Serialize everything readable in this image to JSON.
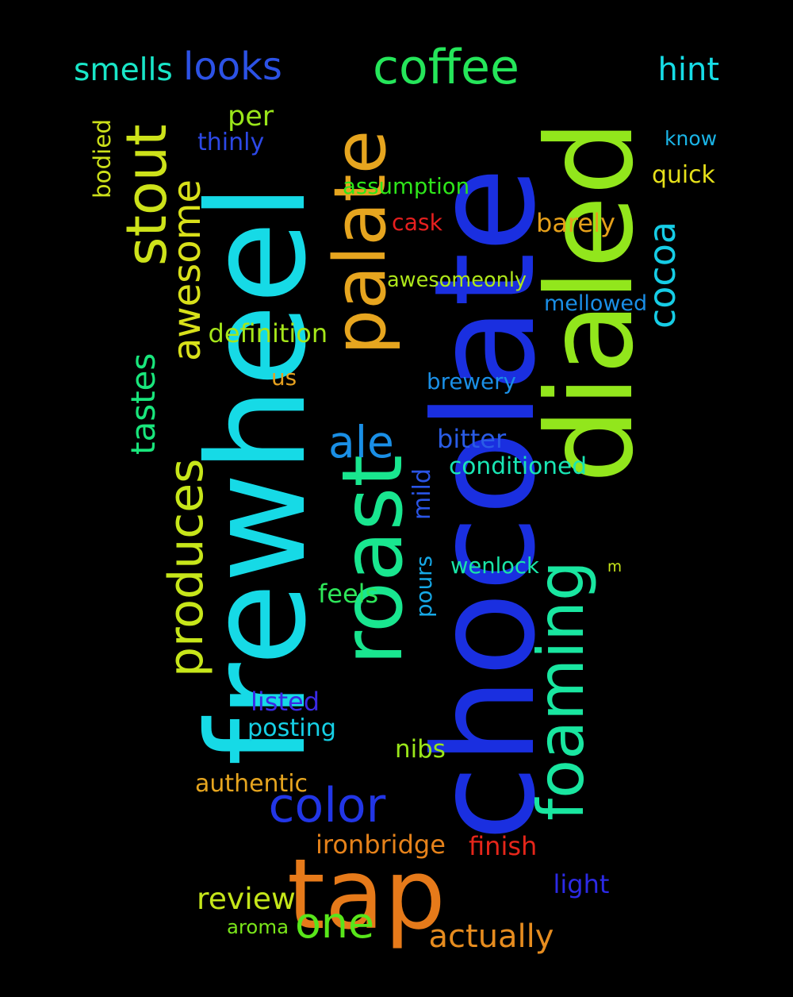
{
  "words": [
    {
      "text": "chocolate",
      "color": "#1a2fe0"
    },
    {
      "text": "frewheel",
      "color": "#16dae6"
    },
    {
      "text": "roast",
      "color": "#19e68f"
    },
    {
      "text": "dialed",
      "color": "#92e61c"
    },
    {
      "text": "palate",
      "color": "#e6a51f"
    },
    {
      "text": "stout",
      "color": "#cde21a"
    },
    {
      "text": "foaming",
      "color": "#19e6a0"
    },
    {
      "text": "tap",
      "color": "#e67a1a"
    },
    {
      "text": "produces",
      "color": "#c7e61a"
    },
    {
      "text": "coffee",
      "color": "#25e65a"
    },
    {
      "text": "awesome",
      "color": "#d8e01a"
    },
    {
      "text": "color",
      "color": "#2236e6"
    },
    {
      "text": "ale",
      "color": "#1a8fe6"
    },
    {
      "text": "looks",
      "color": "#2c52e6"
    },
    {
      "text": "one",
      "color": "#58e61a"
    },
    {
      "text": "tastes",
      "color": "#19e67c"
    },
    {
      "text": "cocoa",
      "color": "#16cde6"
    },
    {
      "text": "smells",
      "color": "#19e6c8"
    },
    {
      "text": "hint",
      "color": "#16dde6"
    },
    {
      "text": "review",
      "color": "#c5e61a"
    },
    {
      "text": "actually",
      "color": "#e68c1f"
    },
    {
      "text": "per",
      "color": "#9ae61a"
    },
    {
      "text": "thinly",
      "color": "#2c48e6"
    },
    {
      "text": "know",
      "color": "#1ab4e6"
    },
    {
      "text": "quick",
      "color": "#e6e01a"
    },
    {
      "text": "bodied",
      "color": "#cde01a"
    },
    {
      "text": "assumption",
      "color": "#2ee61a"
    },
    {
      "text": "cask",
      "color": "#e61f1f"
    },
    {
      "text": "barely",
      "color": "#e6a01a"
    },
    {
      "text": "awesomeonly",
      "color": "#aee61a"
    },
    {
      "text": "mellowed",
      "color": "#1a8ee6"
    },
    {
      "text": "definition",
      "color": "#a5e61a"
    },
    {
      "text": "us",
      "color": "#e6a01f"
    },
    {
      "text": "brewery",
      "color": "#1a8fe6"
    },
    {
      "text": "bitter",
      "color": "#2a5ce6"
    },
    {
      "text": "conditioned",
      "color": "#19e6b4"
    },
    {
      "text": "mild",
      "color": "#2a55e6"
    },
    {
      "text": "wenlock",
      "color": "#19e6a8"
    },
    {
      "text": "m",
      "color": "#c8e61a"
    },
    {
      "text": "pours",
      "color": "#16a8e6"
    },
    {
      "text": "feels",
      "color": "#2ee65a"
    },
    {
      "text": "listed",
      "color": "#3a2ae6"
    },
    {
      "text": "posting",
      "color": "#16d0e6"
    },
    {
      "text": "nibs",
      "color": "#9ae61a"
    },
    {
      "text": "authentic",
      "color": "#e6a51f"
    },
    {
      "text": "ironbridge",
      "color": "#e6821a"
    },
    {
      "text": "finish",
      "color": "#e6261a"
    },
    {
      "text": "light",
      "color": "#2c2ae6"
    },
    {
      "text": "aroma",
      "color": "#7ae61a"
    }
  ]
}
